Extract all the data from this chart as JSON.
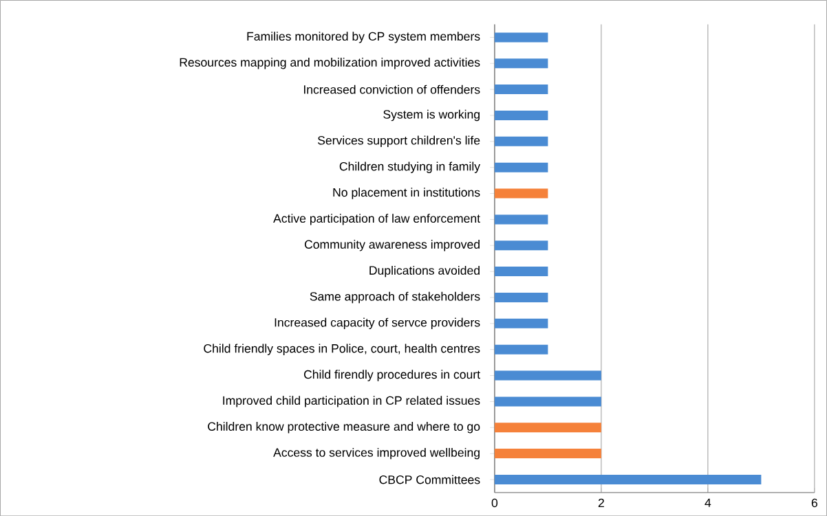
{
  "chart_data": {
    "type": "bar",
    "orientation": "horizontal",
    "categories": [
      "Families monitored by CP system members",
      "Resources mapping and mobilization improved activities",
      "Increased conviction of offenders",
      "System is working",
      "Services support children's life",
      "Children studying in family",
      "No placement in institutions",
      "Active participation of law enforcement",
      "Community awareness improved",
      "Duplications avoided",
      "Same approach of stakeholders",
      "Increased capacity of servce providers",
      "Child friendly spaces in Police, court, health centres",
      "Child firendly procedures in court",
      "Improved child participation in CP related issues",
      "Children know protective measure and where to go",
      "Access to services  improved  wellbeing",
      "CBCP Committees"
    ],
    "values": [
      1,
      1,
      1,
      1,
      1,
      1,
      1,
      1,
      1,
      1,
      1,
      1,
      1,
      2,
      2,
      2,
      2,
      5
    ],
    "colors": [
      "#4a8bd3",
      "#4a8bd3",
      "#4a8bd3",
      "#4a8bd3",
      "#4a8bd3",
      "#4a8bd3",
      "#f5813a",
      "#4a8bd3",
      "#4a8bd3",
      "#4a8bd3",
      "#4a8bd3",
      "#4a8bd3",
      "#4a8bd3",
      "#4a8bd3",
      "#4a8bd3",
      "#f5813a",
      "#f5813a",
      "#4a8bd3"
    ],
    "xlim": [
      0,
      6
    ],
    "xticks": [
      0,
      2,
      4,
      6
    ],
    "grid": "x"
  }
}
